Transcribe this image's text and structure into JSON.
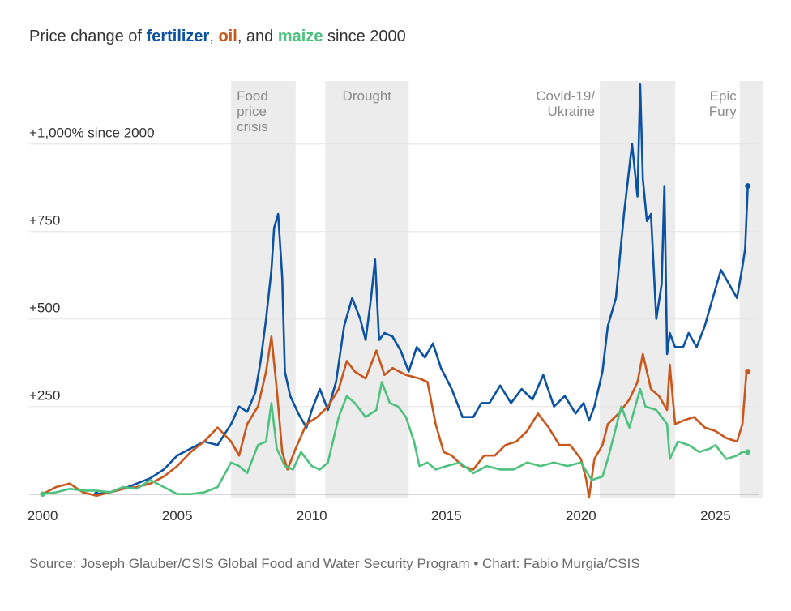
{
  "title": {
    "prefix": "Price change of ",
    "fertilizer": "fertilizer",
    "sep1": ", ",
    "oil": "oil",
    "sep2": ", and ",
    "maize": "maize",
    "suffix": " since 2000"
  },
  "source": "Source: Joseph Glauber/CSIS Global Food and Water Security Program • Chart: Fabio Murgia/CSIS",
  "colors": {
    "fertilizer": "#0b52a3",
    "oil": "#c9571c",
    "maize": "#4cc27e",
    "shade": "#ececec",
    "grid": "#e3e3e3",
    "baseline": "#666666"
  },
  "chart_data": {
    "type": "line",
    "title": "Price change of fertilizer, oil, and maize since 2000",
    "xlabel": "",
    "ylabel": "",
    "xlim": [
      1999.5,
      2026.6
    ],
    "ylim": [
      -10,
      1180
    ],
    "x_ticks": [
      2000,
      2005,
      2010,
      2015,
      2020,
      2025
    ],
    "x_tick_labels": [
      "2000",
      "2005",
      "2010",
      "2015",
      "2020",
      "2025"
    ],
    "y_ticks": [
      250,
      500,
      750,
      1000
    ],
    "y_tick_labels": [
      "+250",
      "+500",
      "+750",
      "+1,000% since 2000"
    ],
    "grid": true,
    "shaded_periods": [
      {
        "label": "Food\nprice\ncrisis",
        "start": 2007.0,
        "end": 2009.4
      },
      {
        "label": "Drought",
        "start": 2010.5,
        "end": 2013.6
      },
      {
        "label": "Covid-19/\nUkraine",
        "start": 2020.7,
        "end": 2023.5
      },
      {
        "label": "Epic\nFury",
        "start": 2025.9,
        "end": 2026.75
      }
    ],
    "series": [
      {
        "name": "fertilizer",
        "color": "#0b52a3",
        "x": [
          2002.0,
          2002.5,
          2003.0,
          2003.5,
          2004.0,
          2004.5,
          2005.0,
          2005.5,
          2006.0,
          2006.5,
          2007.0,
          2007.3,
          2007.6,
          2007.9,
          2008.1,
          2008.3,
          2008.5,
          2008.6,
          2008.75,
          2008.9,
          2009.0,
          2009.2,
          2009.5,
          2009.8,
          2010.0,
          2010.3,
          2010.6,
          2010.9,
          2011.2,
          2011.5,
          2011.8,
          2012.0,
          2012.2,
          2012.35,
          2012.5,
          2012.7,
          2013.0,
          2013.3,
          2013.6,
          2013.9,
          2014.2,
          2014.5,
          2014.8,
          2015.2,
          2015.6,
          2016.0,
          2016.3,
          2016.6,
          2017.0,
          2017.4,
          2017.8,
          2018.2,
          2018.6,
          2019.0,
          2019.4,
          2019.8,
          2020.1,
          2020.3,
          2020.5,
          2020.8,
          2021.0,
          2021.3,
          2021.6,
          2021.9,
          2022.1,
          2022.2,
          2022.3,
          2022.45,
          2022.6,
          2022.8,
          2023.0,
          2023.1,
          2023.2,
          2023.3,
          2023.5,
          2023.8,
          2024.0,
          2024.3,
          2024.6,
          2024.9,
          2025.2,
          2025.5,
          2025.8,
          2026.0,
          2026.1,
          2026.2
        ],
        "values": [
          0,
          5,
          15,
          30,
          45,
          70,
          110,
          130,
          150,
          140,
          200,
          250,
          235,
          290,
          380,
          500,
          640,
          760,
          800,
          620,
          350,
          280,
          230,
          190,
          240,
          300,
          240,
          320,
          480,
          560,
          500,
          440,
          560,
          670,
          440,
          460,
          450,
          410,
          350,
          420,
          390,
          430,
          360,
          300,
          220,
          220,
          260,
          260,
          310,
          260,
          300,
          270,
          340,
          250,
          280,
          230,
          260,
          210,
          250,
          350,
          480,
          560,
          800,
          1000,
          850,
          1170,
          900,
          780,
          800,
          500,
          600,
          880,
          400,
          460,
          420,
          420,
          460,
          420,
          480,
          560,
          640,
          600,
          560,
          650,
          700,
          880
        ]
      },
      {
        "name": "oil",
        "color": "#c9571c",
        "x": [
          2000.0,
          2000.5,
          2001.0,
          2001.5,
          2002.0,
          2002.5,
          2003.0,
          2003.5,
          2004.0,
          2004.5,
          2005.0,
          2005.5,
          2006.0,
          2006.5,
          2007.0,
          2007.3,
          2007.6,
          2008.0,
          2008.3,
          2008.5,
          2008.7,
          2008.9,
          2009.1,
          2009.4,
          2009.8,
          2010.2,
          2010.6,
          2011.0,
          2011.3,
          2011.6,
          2012.0,
          2012.4,
          2012.7,
          2013.0,
          2013.5,
          2014.0,
          2014.3,
          2014.6,
          2014.9,
          2015.2,
          2015.6,
          2016.0,
          2016.4,
          2016.8,
          2017.2,
          2017.6,
          2018.0,
          2018.4,
          2018.8,
          2019.2,
          2019.6,
          2020.0,
          2020.2,
          2020.3,
          2020.5,
          2020.8,
          2021.0,
          2021.4,
          2021.8,
          2022.1,
          2022.3,
          2022.6,
          2022.9,
          2023.2,
          2023.3,
          2023.5,
          2023.8,
          2024.2,
          2024.6,
          2025.0,
          2025.4,
          2025.8,
          2026.0,
          2026.15,
          2026.2
        ],
        "values": [
          0,
          20,
          30,
          5,
          -5,
          5,
          15,
          20,
          30,
          50,
          80,
          120,
          150,
          190,
          150,
          110,
          200,
          250,
          350,
          450,
          300,
          120,
          70,
          130,
          200,
          220,
          250,
          300,
          380,
          350,
          330,
          410,
          340,
          360,
          340,
          330,
          320,
          200,
          120,
          110,
          80,
          70,
          110,
          110,
          140,
          150,
          180,
          230,
          190,
          140,
          140,
          100,
          40,
          -10,
          100,
          140,
          200,
          230,
          270,
          320,
          400,
          300,
          280,
          240,
          370,
          200,
          210,
          220,
          190,
          180,
          160,
          150,
          200,
          350,
          350
        ]
      },
      {
        "name": "maize",
        "color": "#4cc27e",
        "x": [
          2000.0,
          2000.5,
          2001.0,
          2001.5,
          2002.0,
          2002.5,
          2003.0,
          2003.5,
          2004.0,
          2004.5,
          2005.0,
          2005.5,
          2006.0,
          2006.5,
          2007.0,
          2007.3,
          2007.6,
          2008.0,
          2008.3,
          2008.5,
          2008.7,
          2009.0,
          2009.3,
          2009.6,
          2010.0,
          2010.3,
          2010.6,
          2011.0,
          2011.3,
          2011.6,
          2012.0,
          2012.4,
          2012.6,
          2012.9,
          2013.2,
          2013.5,
          2013.8,
          2014.0,
          2014.3,
          2014.6,
          2015.0,
          2015.5,
          2016.0,
          2016.5,
          2017.0,
          2017.5,
          2018.0,
          2018.5,
          2019.0,
          2019.5,
          2020.0,
          2020.4,
          2020.8,
          2021.0,
          2021.2,
          2021.5,
          2021.8,
          2022.2,
          2022.4,
          2022.8,
          2023.2,
          2023.3,
          2023.6,
          2024.0,
          2024.4,
          2024.8,
          2025.0,
          2025.4,
          2025.8,
          2026.0,
          2026.2
        ],
        "values": [
          0,
          5,
          15,
          10,
          10,
          5,
          20,
          15,
          40,
          20,
          0,
          0,
          5,
          20,
          90,
          80,
          60,
          140,
          150,
          260,
          130,
          80,
          70,
          120,
          80,
          70,
          90,
          220,
          280,
          260,
          220,
          240,
          320,
          260,
          250,
          220,
          150,
          80,
          90,
          70,
          80,
          90,
          60,
          80,
          70,
          70,
          90,
          80,
          90,
          80,
          90,
          40,
          50,
          100,
          160,
          250,
          190,
          300,
          250,
          240,
          200,
          100,
          150,
          140,
          120,
          130,
          140,
          100,
          110,
          120,
          120
        ]
      }
    ]
  }
}
